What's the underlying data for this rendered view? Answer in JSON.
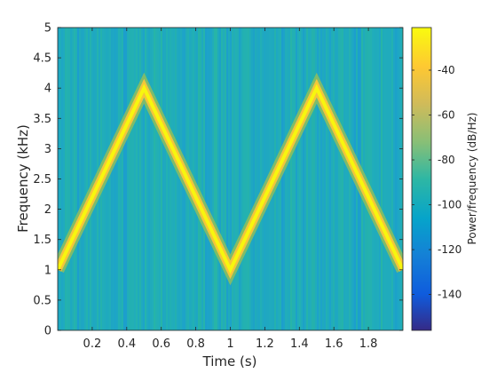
{
  "chart_data": {
    "type": "heatmap",
    "subtype": "spectrogram",
    "xlabel": "Time (s)",
    "ylabel": "Frequency (kHz)",
    "xlim": [
      0,
      2
    ],
    "ylim": [
      0,
      5
    ],
    "x_ticks": [
      0.2,
      0.4,
      0.6,
      0.8,
      1,
      1.2,
      1.4,
      1.6,
      1.8
    ],
    "x_tick_labels": [
      "0.2",
      "0.4",
      "0.6",
      "0.8",
      "1",
      "1.2",
      "1.4",
      "1.6",
      "1.8"
    ],
    "y_ticks": [
      0,
      0.5,
      1,
      1.5,
      2,
      2.5,
      3,
      3.5,
      4,
      4.5,
      5
    ],
    "y_tick_labels": [
      "0",
      "0.5",
      "1",
      "1.5",
      "2",
      "2.5",
      "3",
      "3.5",
      "4",
      "4.5",
      "5"
    ],
    "colorbar": {
      "label": "Power/frequency (dB/Hz)",
      "clim": [
        -156,
        -21
      ],
      "ticks": [
        -40,
        -60,
        -80,
        -100,
        -120,
        -140
      ],
      "tick_labels": [
        "-40",
        "-60",
        "-80",
        "-100",
        "-120",
        "-140"
      ],
      "colormap": "parula"
    },
    "background_level_db": -95,
    "peak_level_db": -22,
    "signal": {
      "description_points": [
        {
          "t": 0,
          "f_khz": 1.0
        },
        {
          "t": 0.5,
          "f_khz": 4.0
        },
        {
          "t": 1.0,
          "f_khz": 1.0
        },
        {
          "t": 1.5,
          "f_khz": 4.0
        },
        {
          "t": 2.0,
          "f_khz": 1.0
        }
      ]
    },
    "grid": false
  }
}
